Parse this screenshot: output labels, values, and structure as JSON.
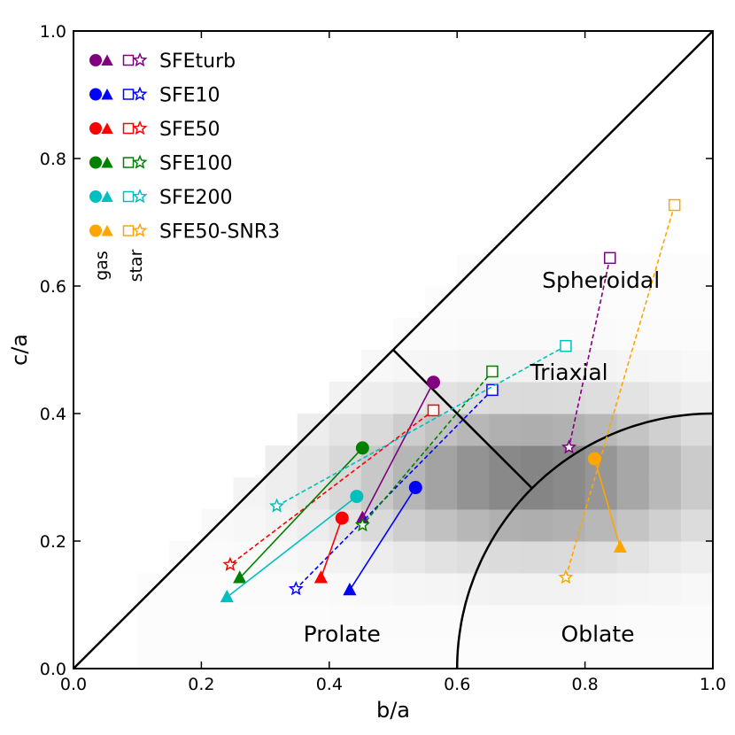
{
  "chart_data": {
    "type": "scatter",
    "title": "",
    "xlabel": "b/a",
    "ylabel": "c/a",
    "xlim": [
      0.0,
      1.0
    ],
    "ylim": [
      0.0,
      1.0
    ],
    "xticks": [
      "0.0",
      "0.2",
      "0.4",
      "0.6",
      "0.8",
      "1.0"
    ],
    "yticks": [
      "0.0",
      "0.2",
      "0.4",
      "0.6",
      "0.8",
      "1.0"
    ],
    "grid": false,
    "legend_position": "top-left",
    "legend_columns": [
      "gas",
      "star"
    ],
    "region_labels": [
      {
        "key": "spheroidal",
        "text": "Spheroidal",
        "x": 0.825,
        "y": 0.61
      },
      {
        "key": "triaxial",
        "text": "Triaxial",
        "x": 0.775,
        "y": 0.465
      },
      {
        "key": "prolate",
        "text": "Prolate",
        "x": 0.42,
        "y": 0.055
      },
      {
        "key": "oblate",
        "text": "Oblate",
        "x": 0.82,
        "y": 0.055
      }
    ],
    "series": [
      {
        "name": "SFEturb",
        "color": "#800080",
        "gas_initial": [
          0.563,
          0.449
        ],
        "gas_final": [
          0.452,
          0.236
        ],
        "star_initial": [
          0.839,
          0.644
        ],
        "star_final": [
          0.775,
          0.347
        ]
      },
      {
        "name": "SFE10",
        "color": "#0000ff",
        "gas_initial": [
          0.535,
          0.284
        ],
        "gas_final": [
          0.432,
          0.123
        ],
        "star_initial": [
          0.655,
          0.437
        ],
        "star_final": [
          0.348,
          0.125
        ]
      },
      {
        "name": "SFE50",
        "color": "#ff0000",
        "gas_initial": [
          0.42,
          0.236
        ],
        "gas_final": [
          0.387,
          0.142
        ],
        "star_initial": [
          0.563,
          0.405
        ],
        "star_final": [
          0.245,
          0.163
        ]
      },
      {
        "name": "SFE100",
        "color": "#008000",
        "gas_initial": [
          0.452,
          0.346
        ],
        "gas_final": [
          0.26,
          0.142
        ],
        "star_initial": [
          0.655,
          0.466
        ],
        "star_final": [
          0.452,
          0.225
        ]
      },
      {
        "name": "SFE200",
        "color": "#00bfbf",
        "gas_initial": [
          0.443,
          0.27
        ],
        "gas_final": [
          0.24,
          0.112
        ],
        "star_initial": [
          0.77,
          0.506
        ],
        "star_final": [
          0.318,
          0.255
        ]
      },
      {
        "name": "SFE50-SNR3",
        "color": "#ffa500",
        "gas_initial": [
          0.815,
          0.329
        ],
        "gas_final": [
          0.855,
          0.19
        ],
        "star_initial": [
          0.94,
          0.727
        ],
        "star_final": [
          0.77,
          0.143
        ]
      }
    ]
  }
}
